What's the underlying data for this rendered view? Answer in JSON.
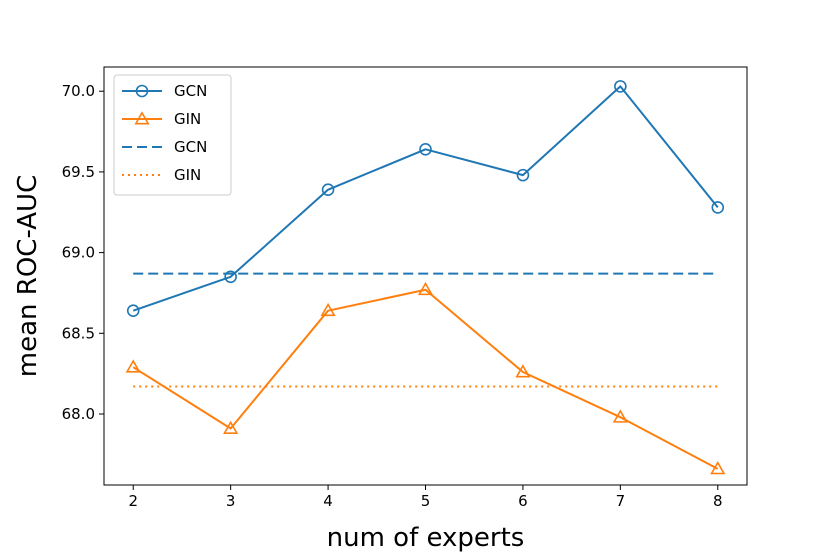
{
  "chart_data": {
    "type": "line",
    "xlabel": "num of experts",
    "ylabel": "mean ROC-AUC",
    "x": [
      2,
      3,
      4,
      5,
      6,
      7,
      8
    ],
    "xlim": [
      1.7,
      8.3
    ],
    "ylim": [
      67.56,
      70.15
    ],
    "yticks": [
      "68.0",
      "68.5",
      "69.0",
      "69.5",
      "70.0"
    ],
    "xticks": [
      "2",
      "3",
      "4",
      "5",
      "6",
      "7",
      "8"
    ],
    "grid": false,
    "legend_position": "top-left",
    "series": [
      {
        "name": "GCN",
        "style": "solid",
        "marker": "circle",
        "color": "#1f77b4",
        "values": [
          68.64,
          68.85,
          69.39,
          69.64,
          69.48,
          70.03,
          69.28
        ]
      },
      {
        "name": "GIN",
        "style": "solid",
        "marker": "triangle",
        "color": "#ff7f0e",
        "values": [
          68.29,
          67.91,
          68.64,
          68.77,
          68.26,
          67.98,
          67.66
        ]
      },
      {
        "name": "GCN",
        "style": "dashed",
        "marker": "none",
        "color": "#1f77b4",
        "values": [
          68.87,
          68.87,
          68.87,
          68.87,
          68.87,
          68.87,
          68.87
        ]
      },
      {
        "name": "GIN",
        "style": "dotted",
        "marker": "none",
        "color": "#ff7f0e",
        "values": [
          68.17,
          68.17,
          68.17,
          68.17,
          68.17,
          68.17,
          68.17
        ]
      }
    ]
  }
}
